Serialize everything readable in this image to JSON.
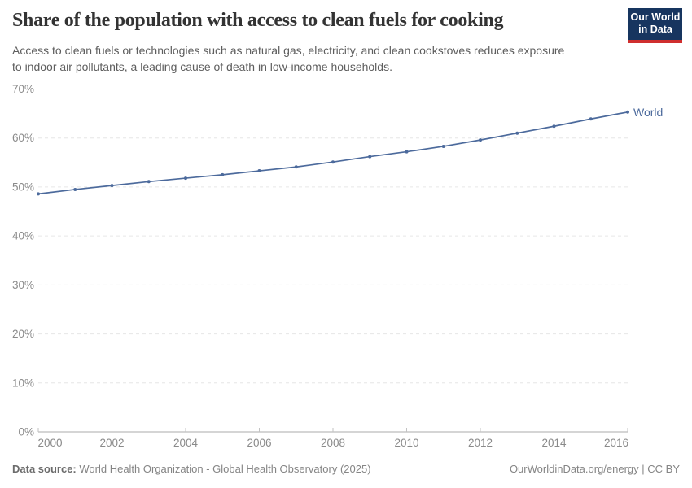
{
  "header": {
    "title": "Share of the population with access to clean fuels for cooking",
    "subtitle_line1": "Access to clean fuels or technologies such as natural gas, electricity, and clean cookstoves reduces exposure",
    "subtitle_line2": "to indoor air pollutants, a leading cause of death in low-income households."
  },
  "logo": {
    "line1": "Our World",
    "line2": "in Data",
    "bg_color": "#17355f",
    "stripe_color": "#cf2e2e"
  },
  "chart_data": {
    "type": "line",
    "title": "Share of the population with access to clean fuels for cooking",
    "x": [
      2000,
      2001,
      2002,
      2003,
      2004,
      2005,
      2006,
      2007,
      2008,
      2009,
      2010,
      2011,
      2012,
      2013,
      2014,
      2015,
      2016
    ],
    "series": [
      {
        "name": "World",
        "color": "#4c6a9c",
        "values": [
          48.6,
          49.5,
          50.3,
          51.1,
          51.8,
          52.5,
          53.3,
          54.1,
          55.1,
          56.2,
          57.2,
          58.3,
          59.6,
          61.0,
          62.4,
          63.9,
          65.3
        ]
      }
    ],
    "xlabel": "",
    "ylabel": "",
    "ylim": [
      0,
      70
    ],
    "yticks": [
      0,
      10,
      20,
      30,
      40,
      50,
      60,
      70
    ],
    "ytick_suffix": "%",
    "xticks": [
      2000,
      2002,
      2004,
      2006,
      2008,
      2010,
      2012,
      2014,
      2016
    ],
    "grid": "horizontal dashed gridlines, solid bottom axis with upward tick marks",
    "legend_position": "label at right end of line",
    "line_color": "#4c6a9c",
    "gridline_color": "#e6e6e6",
    "axis_color": "#ababab",
    "tick_label_color": "#8a8a8a"
  },
  "footer": {
    "data_source_label": "Data source:",
    "data_source_value": "World Health Organization - Global Health Observatory (2025)",
    "credit": "OurWorldinData.org/energy | CC BY"
  }
}
